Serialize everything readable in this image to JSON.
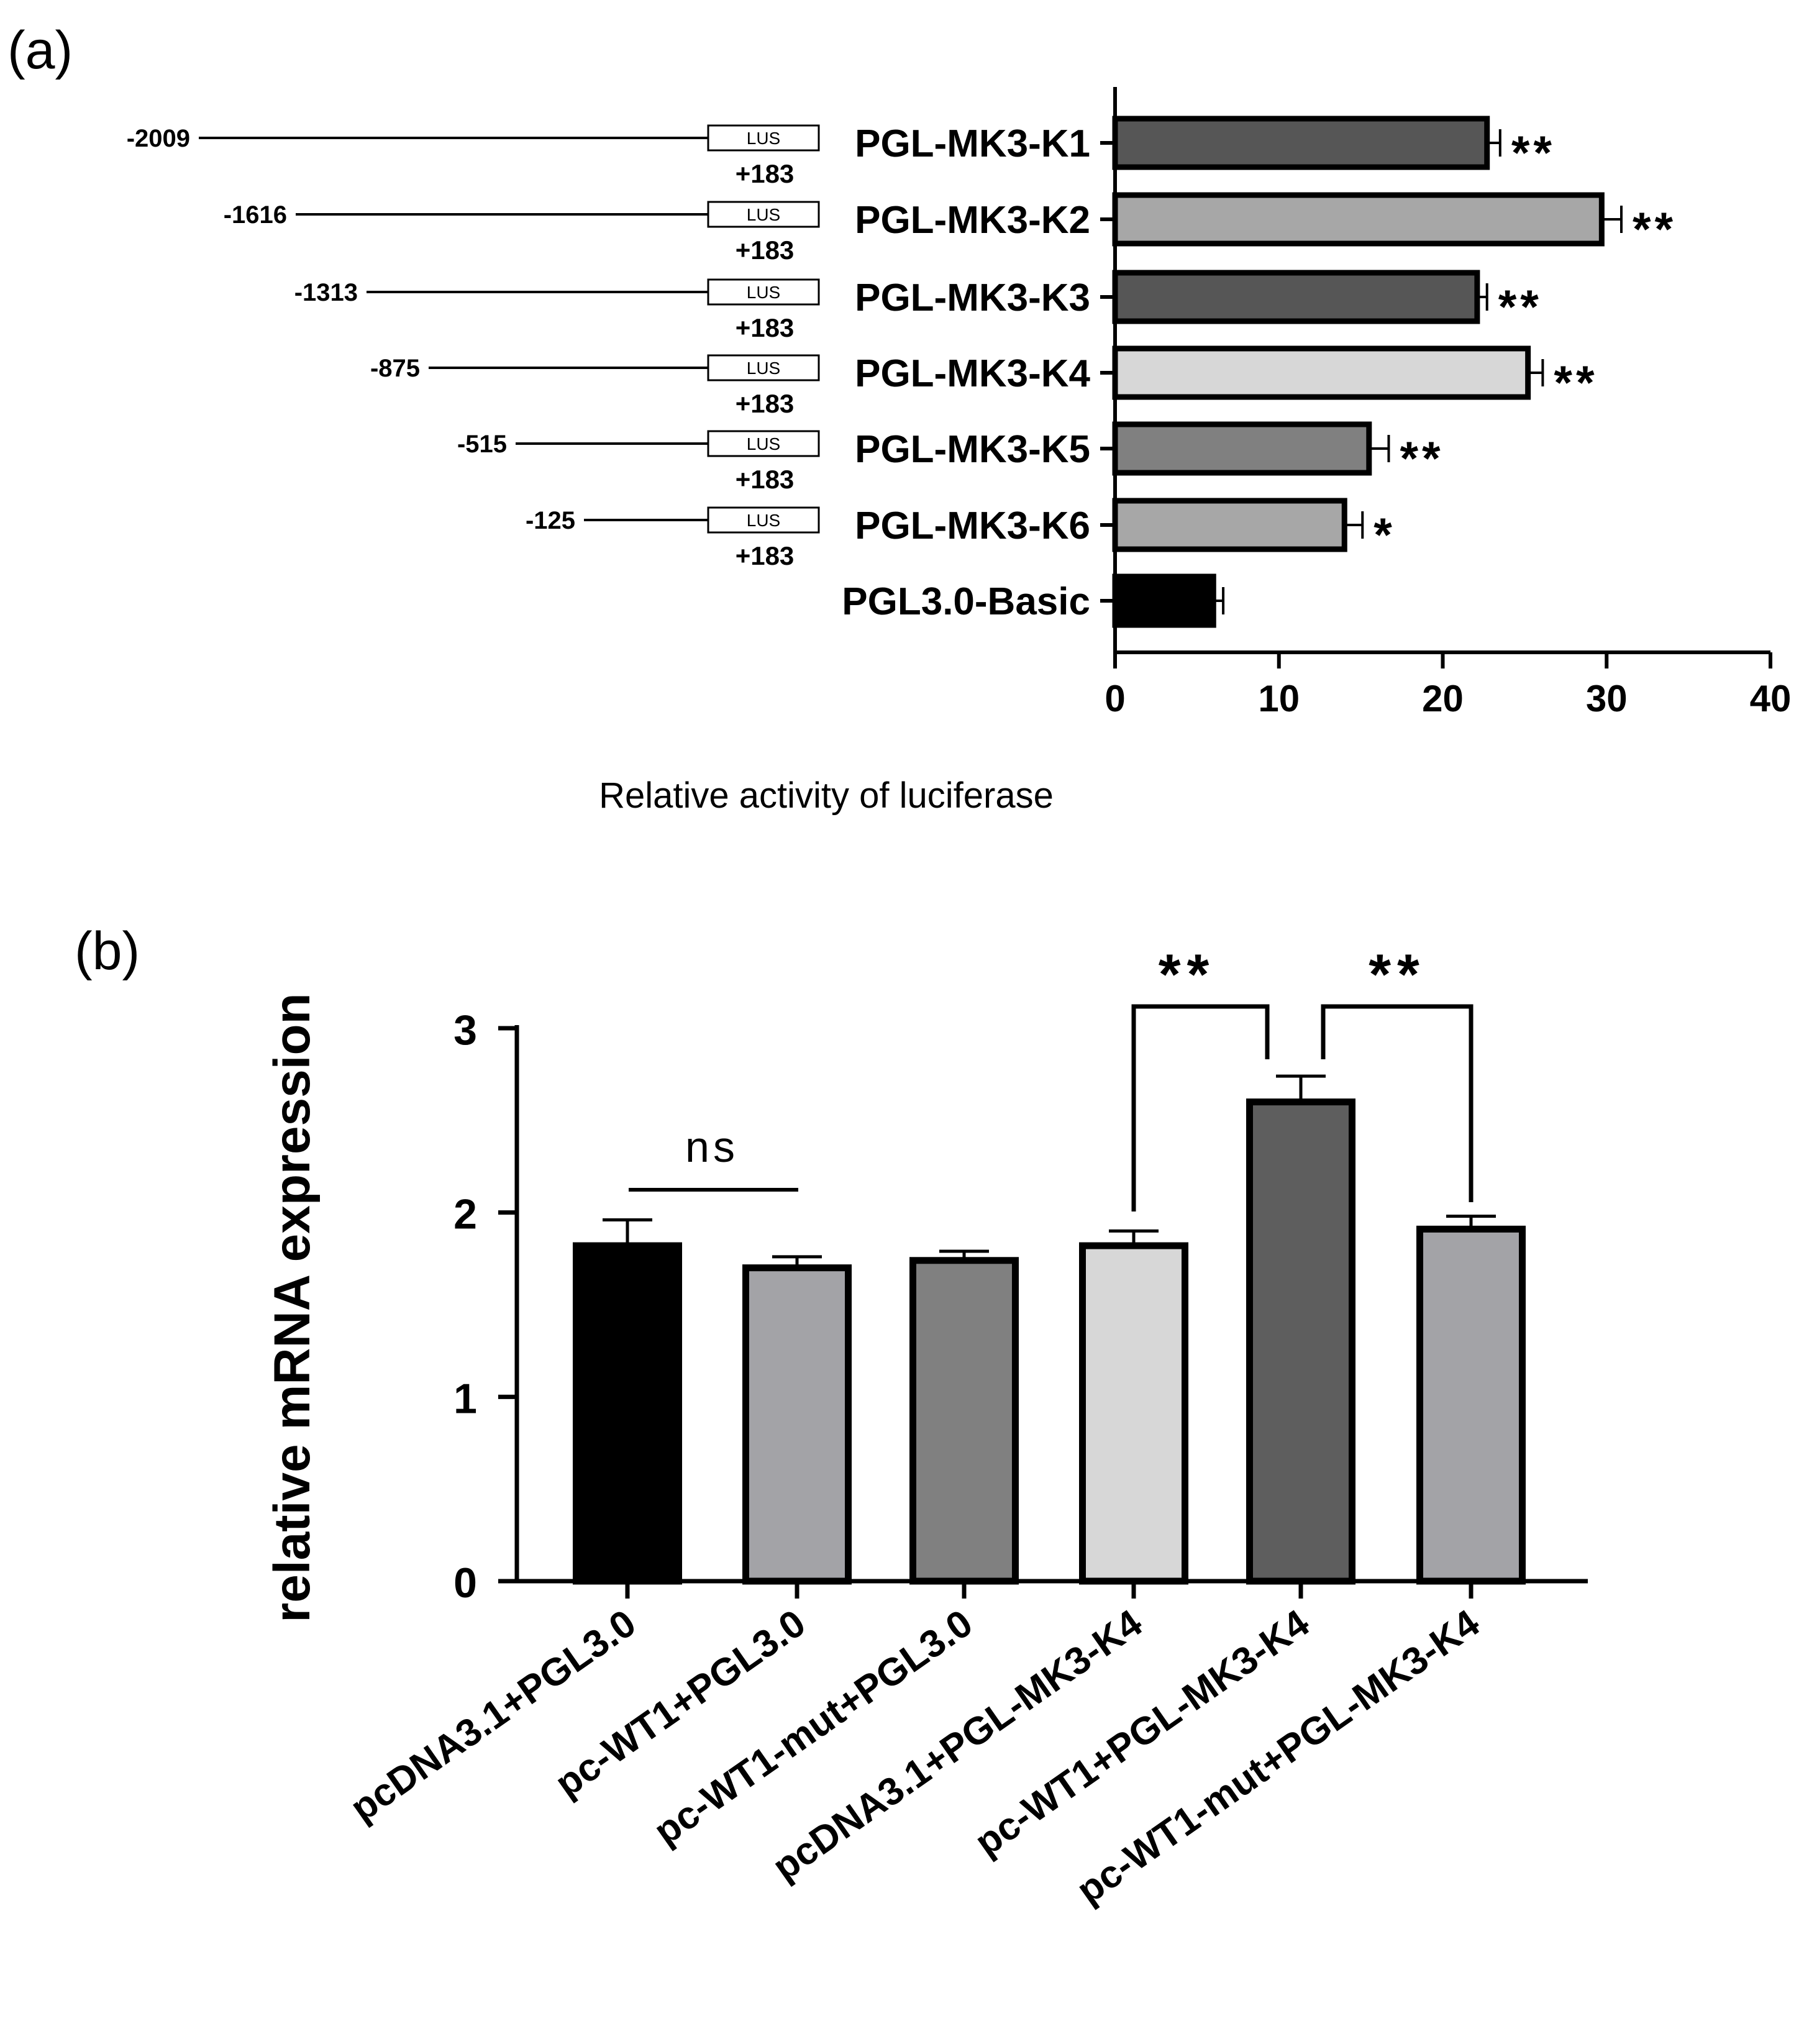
{
  "chart_data": [
    {
      "panel": "(a)",
      "type": "bar",
      "orientation": "horizontal",
      "categories": [
        "PGL-MK3-K1",
        "PGL-MK3-K2",
        "PGL-MK3-K3",
        "PGL-MK3-K4",
        "PGL-MK3-K5",
        "PGL-MK3-K6",
        "PGL3.0-Basic"
      ],
      "values": [
        22.7,
        29.7,
        22.1,
        25.2,
        15.5,
        14.0,
        6.0
      ],
      "errors": [
        0.8,
        1.2,
        0.6,
        0.9,
        1.2,
        1.1,
        0.6
      ],
      "significance": [
        "**",
        "**",
        "**",
        "**",
        "**",
        "*",
        ""
      ],
      "bar_colors": [
        "#565656",
        "#a7a7a7",
        "#565656",
        "#d7d7d7",
        "#808080",
        "#a7a7a7",
        "#000000"
      ],
      "construct_start": [
        "-2009",
        "-1616",
        "-1313",
        "-875",
        "-515",
        "-125"
      ],
      "construct_box": "LUS",
      "construct_end": "+183",
      "xlabel": "Relative activity of luciferase",
      "xlim": [
        0,
        40
      ],
      "xticks": [
        "0",
        "10",
        "20",
        "30",
        "40"
      ]
    },
    {
      "panel": "(b)",
      "type": "bar",
      "categories": [
        "pcDNA3.1+PGL3.0",
        "pc-WT1+PGL3.0",
        "pc-WT1-mut+PGL3.0",
        "pcDNA3.1+PGL-MK3-K4",
        "pc-WT1+PGL-MK3-K4",
        "pc-WT1-mut+PGL-MK3-K4"
      ],
      "values": [
        1.82,
        1.7,
        1.74,
        1.82,
        2.6,
        1.91
      ],
      "errors": [
        0.14,
        0.06,
        0.05,
        0.08,
        0.14,
        0.07
      ],
      "bar_colors": [
        "#000000",
        "#a3a3a7",
        "#808080",
        "#d7d7d7",
        "#5e5e5e",
        "#a3a3a7"
      ],
      "ylabel": "relative mRNA expression",
      "ylim": [
        0,
        3
      ],
      "yticks": [
        "0",
        "1",
        "2",
        "3"
      ],
      "comparisons": [
        {
          "a": 0,
          "b": 1,
          "label": "ns"
        },
        {
          "a": 3,
          "b": 4,
          "label": "**"
        },
        {
          "a": 4,
          "b": 5,
          "label": "**"
        }
      ]
    }
  ]
}
